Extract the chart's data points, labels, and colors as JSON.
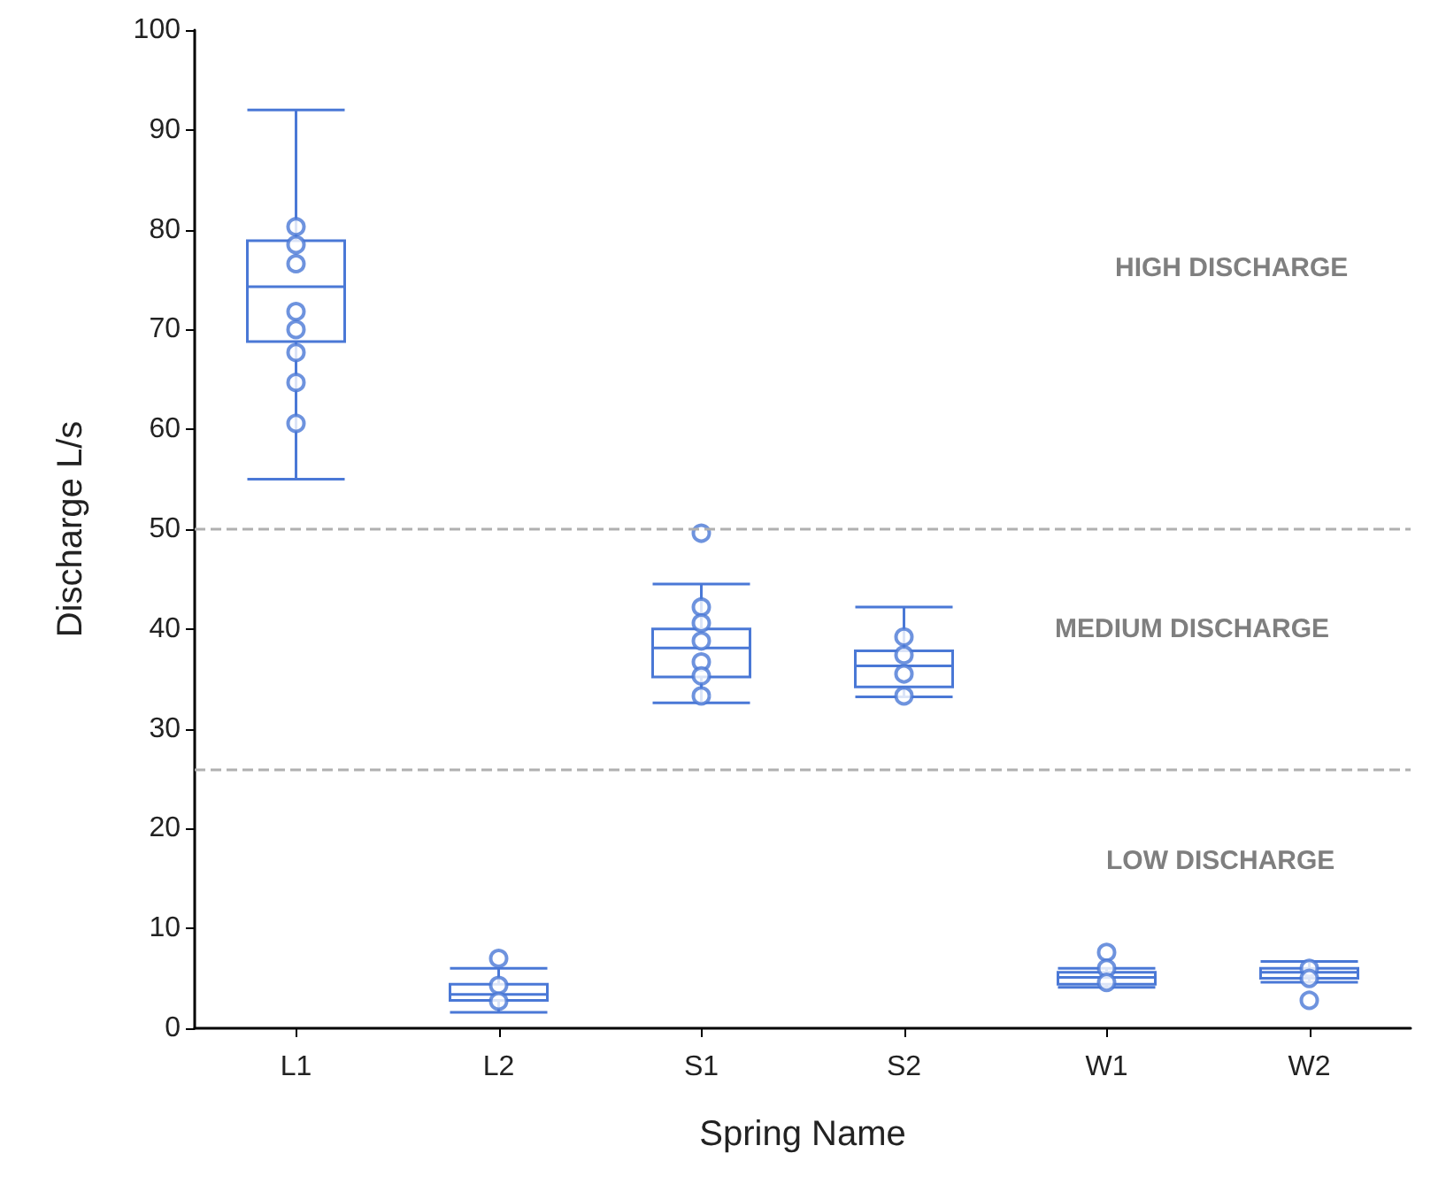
{
  "chart_data": {
    "type": "box",
    "xlabel": "Spring Name",
    "ylabel": "Discharge L/s",
    "categories": [
      "L1",
      "L2",
      "S1",
      "S2",
      "W1",
      "W2"
    ],
    "ylim": [
      0,
      100
    ],
    "yticks": [
      0,
      10,
      20,
      30,
      40,
      50,
      60,
      70,
      80,
      90,
      100
    ],
    "grid": false,
    "series": [
      {
        "color": "#4a78d6",
        "boxes": [
          {
            "low": 55,
            "q1": 68.8,
            "median": 74.3,
            "q3": 78.9,
            "high": 92
          },
          {
            "low": 1.6,
            "q1": 2.8,
            "median": 3.4,
            "q3": 4.4,
            "high": 6
          },
          {
            "low": 32.6,
            "q1": 35.2,
            "median": 38.1,
            "q3": 40,
            "high": 44.5
          },
          {
            "low": 33.2,
            "q1": 34.2,
            "median": 36.3,
            "q3": 37.8,
            "high": 42.2
          },
          {
            "low": 4.1,
            "q1": 4.4,
            "median": 5.1,
            "q3": 5.6,
            "high": 6
          },
          {
            "low": 4.6,
            "q1": 5,
            "median": 5.6,
            "q3": 6,
            "high": 6.7
          }
        ]
      },
      {
        "type": "scatter",
        "color": "#4a78d6",
        "marker": "circle",
        "x": [
          "L1",
          "L1",
          "L1",
          "L1",
          "L1",
          "L1",
          "L1",
          "L1",
          "L2",
          "L2",
          "L2",
          "S1",
          "S1",
          "S1",
          "S1",
          "S1",
          "S1",
          "S1",
          "S2",
          "S2",
          "S2",
          "S2",
          "W1",
          "W1",
          "W1",
          "W2",
          "W2",
          "W2"
        ],
        "values": [
          80.3,
          78.5,
          76.6,
          71.8,
          70,
          67.7,
          64.7,
          60.6,
          7,
          4.3,
          2.7,
          49.6,
          42.2,
          40.6,
          38.8,
          36.7,
          35.3,
          33.3,
          39.2,
          37.4,
          35.5,
          33.3,
          7.6,
          6,
          4.6,
          6,
          5,
          2.8
        ]
      }
    ],
    "ref_lines": [
      {
        "axis": "y",
        "value": 50,
        "color": "#b0b0b0",
        "line_style": "dashed"
      },
      {
        "axis": "y",
        "value": 26,
        "color": "#b0b0b0",
        "line_style": "dashed"
      }
    ],
    "annotations": [
      "HIGH DISCHARGE",
      "MEDIUM DISCHARGE",
      "LOW DISCHARGE"
    ]
  }
}
